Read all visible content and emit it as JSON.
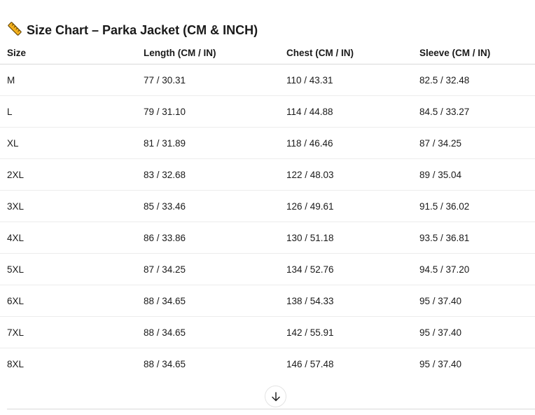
{
  "title": {
    "icon": "ruler-icon",
    "text": "Size Chart – Parka Jacket (CM & INCH)"
  },
  "table": {
    "headers": [
      "Size",
      "Length (CM / IN)",
      "Chest (CM / IN)",
      "Sleeve (CM / IN)"
    ],
    "rows": [
      [
        "M",
        "77 / 30.31",
        "110 / 43.31",
        "82.5 / 32.48"
      ],
      [
        "L",
        "79 / 31.10",
        "114 / 44.88",
        "84.5 / 33.27"
      ],
      [
        "XL",
        "81 / 31.89",
        "118 / 46.46",
        "87 / 34.25"
      ],
      [
        "2XL",
        "83 / 32.68",
        "122 / 48.03",
        "89 / 35.04"
      ],
      [
        "3XL",
        "85 / 33.46",
        "126 / 49.61",
        "91.5 / 36.02"
      ],
      [
        "4XL",
        "86 / 33.86",
        "130 / 51.18",
        "93.5 / 36.81"
      ],
      [
        "5XL",
        "87 / 34.25",
        "134 / 52.76",
        "94.5 / 37.20"
      ],
      [
        "6XL",
        "88 / 34.65",
        "138 / 54.33",
        "95 / 37.40"
      ],
      [
        "7XL",
        "88 / 34.65",
        "142 / 55.91",
        "95 / 37.40"
      ],
      [
        "8XL",
        "88 / 34.65",
        "146 / 57.48",
        "95 / 37.40"
      ]
    ]
  },
  "scroll_button": {
    "icon": "arrow-down-icon"
  }
}
